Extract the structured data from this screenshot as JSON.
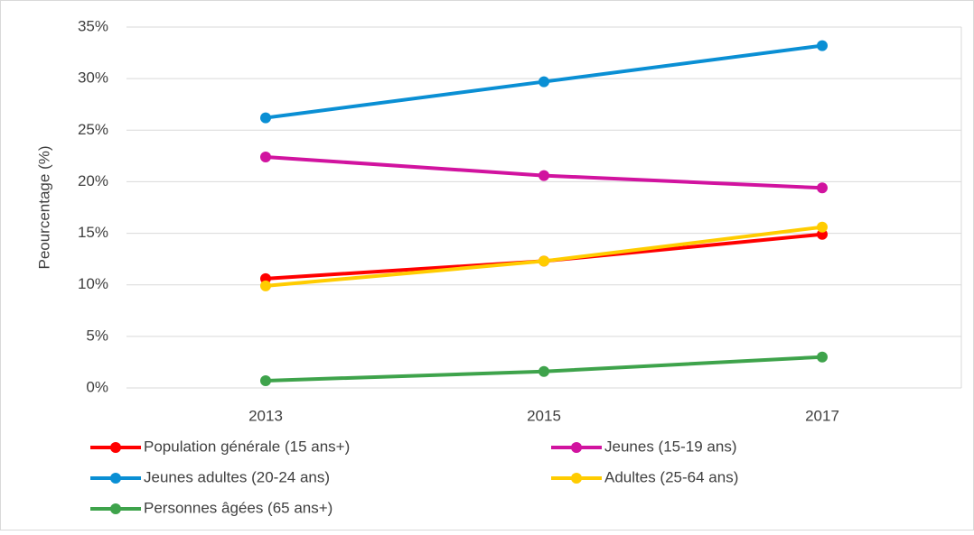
{
  "chart_data": {
    "type": "line",
    "y_label": "Peourcentage (%)",
    "categories": [
      "2013",
      "2015",
      "2017"
    ],
    "series": [
      {
        "name": "Population générale (15 ans+)",
        "color": "#ff0000",
        "values": [
          10.6,
          12.3,
          14.9
        ]
      },
      {
        "name": "Jeunes (15-19 ans)",
        "color": "#d1139f",
        "values": [
          22.4,
          20.6,
          19.4
        ]
      },
      {
        "name": "Jeunes adultes (20-24 ans)",
        "color": "#0a8fd4",
        "values": [
          26.2,
          29.7,
          33.2
        ]
      },
      {
        "name": "Adultes (25-64 ans)",
        "color": "#ffcc00",
        "values": [
          9.9,
          12.3,
          15.6
        ]
      },
      {
        "name": "Personnes âgées (65 ans+)",
        "color": "#3ea34b",
        "values": [
          0.7,
          1.6,
          3.0
        ]
      }
    ],
    "ylim": [
      0,
      35
    ],
    "yticks": [
      {
        "value": 0,
        "label": "0%"
      },
      {
        "value": 5,
        "label": "5%"
      },
      {
        "value": 10,
        "label": "10%"
      },
      {
        "value": 15,
        "label": "15%"
      },
      {
        "value": 20,
        "label": "20%"
      },
      {
        "value": 25,
        "label": "25%"
      },
      {
        "value": 30,
        "label": "30%"
      },
      {
        "value": 35,
        "label": "35%"
      }
    ],
    "grid": true,
    "legend": "bottom"
  }
}
